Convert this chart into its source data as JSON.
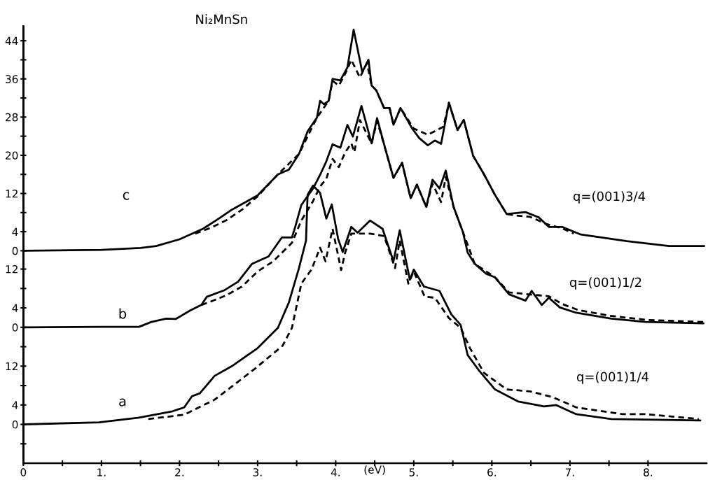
{
  "chart_data": [
    {
      "type": "line",
      "title": "Ni₂MnSn",
      "tick_labels": "y",
      "xlim": [
        0,
        8.75
      ],
      "ylim": [
        -44.5,
        47
      ],
      "yticks": [
        0,
        4,
        {
          "value": 8,
          "label": null
        },
        12,
        {
          "value": 16,
          "label": null
        },
        20,
        {
          "value": 24,
          "label": null
        },
        28,
        {
          "value": 32,
          "label": null
        },
        36,
        {
          "value": 40,
          "label": null
        },
        44
      ],
      "annotations": [
        "c",
        "q=(001)3/4"
      ],
      "series": [
        {
          "color": "#000000",
          "line_style": "solid",
          "x": [
            0,
            1.0,
            1.5,
            1.7,
            2.0,
            2.3,
            2.5,
            2.67,
            3.0,
            3.26,
            3.4,
            3.53,
            3.64,
            3.76,
            3.8,
            3.85,
            3.91,
            3.96,
            4.06,
            4.15,
            4.23,
            4.31,
            4.34,
            4.42,
            4.46,
            4.52,
            4.62,
            4.69,
            4.74,
            4.83,
            4.98,
            5.07,
            5.18,
            5.27,
            5.35,
            5.45,
            5.56,
            5.64,
            5.76,
            5.9,
            6.04,
            6.19,
            6.43,
            6.6,
            6.73,
            6.9,
            7.14,
            7.73,
            8.27,
            8.72
          ],
          "values": [
            0,
            0.2,
            0.6,
            1.0,
            2.4,
            4.6,
            6.7,
            8.6,
            11.6,
            16.0,
            17.0,
            20.3,
            25.0,
            27.9,
            31.4,
            30.7,
            31.4,
            36.0,
            35.7,
            38.4,
            46.3,
            39.9,
            37.4,
            40.0,
            34.6,
            33.6,
            29.9,
            29.9,
            26.4,
            29.9,
            25.6,
            23.6,
            22.1,
            23.1,
            22.4,
            31.0,
            25.3,
            27.4,
            19.9,
            16.0,
            11.7,
            7.7,
            8.1,
            7.0,
            5.0,
            5.0,
            3.4,
            2.0,
            1.0,
            1.0
          ]
        },
        {
          "color": "#000000",
          "line_style": "dashed",
          "x": [
            2.2,
            2.4,
            2.6,
            2.8,
            3.0,
            3.26,
            3.53,
            3.76,
            3.91,
            3.96,
            4.04,
            4.12,
            4.2,
            4.31,
            4.4,
            4.46,
            4.52,
            4.62,
            4.69,
            4.74,
            4.83,
            5.0,
            5.18,
            5.3,
            5.38,
            5.45,
            5.56,
            5.64,
            5.76,
            5.9,
            6.04,
            6.19,
            6.3,
            6.49,
            6.7,
            6.9,
            7.05
          ],
          "values": [
            3.6,
            4.8,
            6.4,
            8.6,
            11.4,
            16.0,
            20.3,
            27.9,
            31.4,
            35.6,
            34.6,
            37.0,
            40.0,
            36.3,
            39.3,
            34.6,
            33.6,
            29.9,
            29.9,
            26.4,
            29.9,
            25.6,
            24.3,
            25.3,
            26.0,
            31.0,
            25.3,
            27.4,
            19.9,
            16.0,
            11.7,
            7.7,
            7.4,
            7.1,
            5.6,
            4.7,
            3.6
          ]
        }
      ]
    },
    {
      "type": "line",
      "tick_labels": "y",
      "xlim": [
        0,
        8.75
      ],
      "ylim": [
        -28,
        62
      ],
      "yticks": [
        0,
        4,
        {
          "value": 8,
          "label": null
        },
        12
      ],
      "annotations": [
        "b",
        "q=(001)1/2"
      ],
      "series": [
        {
          "color": "#000000",
          "line_style": "solid",
          "x": [
            0,
            1.0,
            1.48,
            1.64,
            1.83,
            1.95,
            2.14,
            2.28,
            2.35,
            2.57,
            2.75,
            2.93,
            3.14,
            3.31,
            3.44,
            3.48,
            3.56,
            3.71,
            3.8,
            3.88,
            3.96,
            4.06,
            4.15,
            4.22,
            4.33,
            4.46,
            4.53,
            4.64,
            4.74,
            4.85,
            4.96,
            5.04,
            5.16,
            5.24,
            5.33,
            5.41,
            5.51,
            5.63,
            5.69,
            5.78,
            5.93,
            6.04,
            6.22,
            6.43,
            6.51,
            6.64,
            6.73,
            6.87,
            7.08,
            7.53,
            7.97,
            8.71
          ],
          "values": [
            0,
            0.1,
            0.1,
            1.1,
            1.8,
            1.7,
            3.5,
            4.6,
            6.3,
            7.6,
            9.4,
            13.1,
            14.6,
            18.5,
            18.5,
            20.6,
            25.2,
            28.6,
            31.4,
            34.2,
            37.7,
            37.0,
            41.7,
            39.3,
            45.6,
            37.9,
            43.1,
            36.5,
            30.8,
            33.9,
            26.6,
            29.4,
            24.8,
            30.4,
            28.6,
            32.3,
            24.8,
            19.6,
            15.4,
            13.1,
            11.0,
            10.3,
            6.8,
            5.5,
            7.5,
            4.6,
            6.1,
            4.1,
            3.0,
            1.8,
            1.1,
            0.8
          ]
        },
        {
          "color": "#000000",
          "line_style": "dashed",
          "x": [
            2.28,
            2.4,
            2.6,
            2.8,
            3.0,
            3.2,
            3.44,
            3.56,
            3.71,
            3.8,
            3.88,
            3.96,
            4.04,
            4.12,
            4.2,
            4.24,
            4.31,
            4.46,
            4.53,
            4.64,
            4.74,
            4.85,
            4.96,
            5.04,
            5.16,
            5.24,
            5.35,
            5.41,
            5.51,
            5.63,
            5.78,
            6.04,
            6.22,
            6.47,
            6.6,
            6.73,
            6.9,
            7.1,
            7.5,
            8.0,
            8.71
          ],
          "values": [
            4.6,
            5.3,
            6.6,
            8.4,
            11.5,
            13.6,
            17.4,
            22.0,
            26.0,
            29.0,
            30.6,
            34.7,
            33.0,
            36.0,
            37.9,
            36.1,
            42.7,
            37.9,
            42.5,
            36.5,
            30.8,
            33.9,
            26.6,
            29.4,
            24.8,
            29.6,
            25.8,
            31.0,
            24.8,
            19.6,
            13.1,
            10.3,
            7.2,
            6.8,
            6.6,
            6.4,
            4.8,
            3.6,
            2.4,
            1.5,
            1.1
          ]
        }
      ]
    },
    {
      "type": "line",
      "xlim": [
        0,
        8.75
      ],
      "ylim": [
        -8,
        82
      ],
      "xticks": [
        0,
        {
          "value": 0.5,
          "label": null
        },
        {
          "value": 1,
          "label": "1."
        },
        {
          "value": 1.5,
          "label": null
        },
        {
          "value": 2,
          "label": "2."
        },
        {
          "value": 2.5,
          "label": null
        },
        {
          "value": 3,
          "label": "3."
        },
        {
          "value": 3.5,
          "label": null
        },
        {
          "value": 4,
          "label": "4."
        },
        {
          "value": 4.5,
          "label": null
        },
        {
          "value": 5,
          "label": "5."
        },
        {
          "value": 5.5,
          "label": null
        },
        {
          "value": 6,
          "label": "6."
        },
        {
          "value": 6.5,
          "label": null
        },
        {
          "value": 7,
          "label": "7."
        },
        {
          "value": 7.5,
          "label": null
        },
        {
          "value": 8,
          "label": "8."
        }
      ],
      "xlabel": "(eV)",
      "yticks": [
        {
          "value": -4,
          "label": null
        },
        0,
        4,
        {
          "value": 8,
          "label": null
        },
        12,
        {
          "value": 16,
          "label": null
        }
      ],
      "annotations": [
        "a",
        "q=(001)1/4"
      ],
      "series": [
        {
          "color": "#000000",
          "line_style": "solid",
          "x": [
            0,
            0.97,
            1.48,
            1.91,
            2.06,
            2.16,
            2.26,
            2.45,
            2.67,
            3.0,
            3.26,
            3.4,
            3.53,
            3.62,
            3.64,
            3.71,
            3.8,
            3.88,
            3.95,
            4.03,
            4.09,
            4.2,
            4.28,
            4.44,
            4.6,
            4.74,
            4.82,
            4.95,
            5.0,
            5.13,
            5.33,
            5.48,
            5.6,
            5.69,
            5.84,
            6.04,
            6.34,
            6.67,
            6.82,
            7.08,
            7.53,
            8.67
          ],
          "values": [
            0,
            0.4,
            1.4,
            2.7,
            3.5,
            5.8,
            6.4,
            10.0,
            12.0,
            15.7,
            19.9,
            25.1,
            32.2,
            37.9,
            47.3,
            49.2,
            47.7,
            42.4,
            45.3,
            38.3,
            35.5,
            40.7,
            39.5,
            42.0,
            40.3,
            33.6,
            40.0,
            29.8,
            31.9,
            28.4,
            27.5,
            22.7,
            20.5,
            14.3,
            11.0,
            7.2,
            4.7,
            3.7,
            4.0,
            2.1,
            1.1,
            0.8
          ]
        },
        {
          "color": "#000000",
          "line_style": "dashed",
          "x": [
            1.6,
            2.06,
            2.45,
            2.67,
            2.96,
            3.32,
            3.44,
            3.56,
            3.69,
            3.8,
            3.87,
            3.96,
            4.07,
            4.12,
            4.2,
            4.29,
            4.44,
            4.62,
            4.76,
            4.82,
            4.93,
            5.0,
            5.14,
            5.27,
            5.45,
            5.6,
            5.72,
            5.9,
            6.19,
            6.49,
            6.78,
            7.08,
            7.67,
            7.97,
            8.65
          ],
          "values": [
            1.1,
            2.0,
            5.1,
            7.8,
            11.4,
            16.2,
            19.9,
            29.0,
            31.9,
            36.4,
            33.6,
            40.3,
            31.8,
            35.3,
            39.3,
            39.3,
            39.3,
            38.8,
            32.2,
            37.9,
            29.0,
            31.5,
            26.3,
            26.1,
            21.9,
            19.9,
            15.7,
            10.6,
            7.2,
            6.8,
            5.6,
            3.5,
            2.1,
            2.1,
            1.1
          ]
        }
      ]
    }
  ]
}
